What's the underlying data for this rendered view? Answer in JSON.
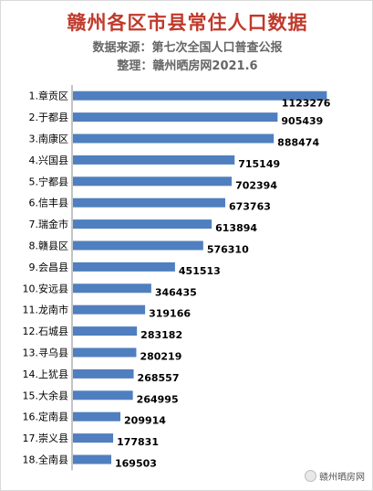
{
  "header": {
    "title": "赣州各区市县常住人口数据",
    "source": "数据来源：第七次全国人口普查公报",
    "compiler": "整理：赣州晒房网2021.6"
  },
  "watermark": "赣州晒房网",
  "colors": {
    "bar": "#4f7fbf",
    "title": "#c0392b",
    "subtitle": "#666666"
  },
  "chart_data": {
    "type": "bar",
    "orientation": "horizontal",
    "categories": [
      "1.章贡区",
      "2.于都县",
      "3.南康区",
      "4.兴国县",
      "5.宁都县",
      "6.信丰县",
      "7.瑞金市",
      "8.赣县区",
      "9.会昌县",
      "10.安远县",
      "11.龙南市",
      "12.石城县",
      "13.寻乌县",
      "14.上犹县",
      "15.大余县",
      "16.定南县",
      "17.崇义县",
      "18.全南县"
    ],
    "values": [
      1123276,
      905439,
      888474,
      715149,
      702394,
      673763,
      613894,
      576310,
      451513,
      346435,
      319166,
      283182,
      280219,
      268557,
      264995,
      209914,
      177831,
      169503
    ],
    "xlim": [
      0,
      1150000
    ],
    "grid": false,
    "legend": "none"
  }
}
